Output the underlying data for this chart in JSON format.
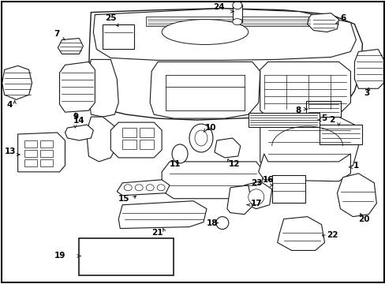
{
  "bg_color": "#ffffff",
  "border_color": "#000000",
  "line_color": "#1a1a1a",
  "text_color": "#000000",
  "fig_width": 4.89,
  "fig_height": 3.6,
  "dpi": 100,
  "fs": 7.5,
  "lw": 0.7
}
